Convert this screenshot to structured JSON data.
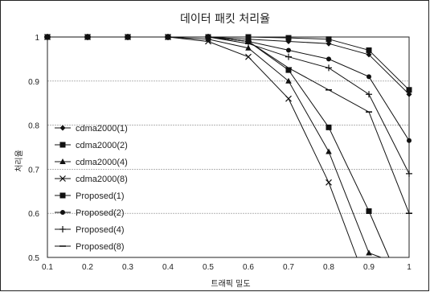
{
  "chart_data": {
    "type": "line",
    "title": "데이터 패킷 처리율",
    "xlabel": "트래픽 밀도",
    "ylabel": "처리율",
    "xlim": [
      0.1,
      1.0
    ],
    "ylim": [
      0.5,
      1.0
    ],
    "x_ticks": [
      "0.1",
      "0.2",
      "0.3",
      "0.4",
      "0.5",
      "0.6",
      "0.7",
      "0.8",
      "0.9",
      "1"
    ],
    "y_ticks": [
      "0.5",
      "0.6",
      "0.7",
      "0.8",
      "0.9",
      "1"
    ],
    "grid": "horizontal",
    "legend_position": "left",
    "series": [
      {
        "name": "cdma2000(1)",
        "marker": "diamond",
        "x": [
          0.1,
          0.2,
          0.3,
          0.4,
          0.5,
          0.6,
          0.7,
          0.8,
          0.9,
          1.0
        ],
        "y": [
          1,
          1,
          1,
          1,
          1,
          0.995,
          0.99,
          0.985,
          0.96,
          0.87
        ]
      },
      {
        "name": "cdma2000(2)",
        "marker": "square",
        "x": [
          0.1,
          0.2,
          0.3,
          0.4,
          0.5,
          0.6,
          0.7,
          0.8,
          0.9,
          0.95
        ],
        "y": [
          1,
          1,
          1,
          1,
          1,
          0.99,
          0.925,
          0.795,
          0.605,
          0.5
        ]
      },
      {
        "name": "cdma2000(4)",
        "marker": "triangle",
        "x": [
          0.1,
          0.2,
          0.3,
          0.4,
          0.5,
          0.6,
          0.7,
          0.8,
          0.9,
          0.93
        ],
        "y": [
          1,
          1,
          1,
          1,
          0.995,
          0.975,
          0.9,
          0.74,
          0.51,
          0.5
        ]
      },
      {
        "name": "cdma2000(8)",
        "marker": "x",
        "x": [
          0.1,
          0.2,
          0.3,
          0.4,
          0.5,
          0.6,
          0.7,
          0.8,
          0.87
        ],
        "y": [
          1,
          1,
          1,
          1,
          0.99,
          0.955,
          0.86,
          0.67,
          0.5
        ]
      },
      {
        "name": "Proposed(1)",
        "marker": "square",
        "x": [
          0.1,
          0.2,
          0.3,
          0.4,
          0.5,
          0.6,
          0.7,
          0.8,
          0.9,
          1.0
        ],
        "y": [
          1,
          1,
          1,
          1,
          1,
          1,
          0.998,
          0.995,
          0.97,
          0.88
        ]
      },
      {
        "name": "Proposed(2)",
        "marker": "circle",
        "x": [
          0.1,
          0.2,
          0.3,
          0.4,
          0.5,
          0.6,
          0.7,
          0.8,
          0.9,
          1.0
        ],
        "y": [
          1,
          1,
          1,
          1,
          1,
          0.99,
          0.97,
          0.95,
          0.91,
          0.765
        ]
      },
      {
        "name": "Proposed(4)",
        "marker": "plus",
        "x": [
          0.1,
          0.2,
          0.3,
          0.4,
          0.5,
          0.6,
          0.7,
          0.8,
          0.9,
          1.0
        ],
        "y": [
          1,
          1,
          1,
          1,
          1,
          0.985,
          0.955,
          0.93,
          0.87,
          0.69
        ]
      },
      {
        "name": "Proposed(8)",
        "marker": "dash",
        "x": [
          0.1,
          0.2,
          0.3,
          0.4,
          0.5,
          0.6,
          0.7,
          0.8,
          0.9,
          1.0
        ],
        "y": [
          1,
          1,
          1,
          1,
          1,
          0.99,
          0.93,
          0.88,
          0.83,
          0.6
        ]
      }
    ]
  }
}
